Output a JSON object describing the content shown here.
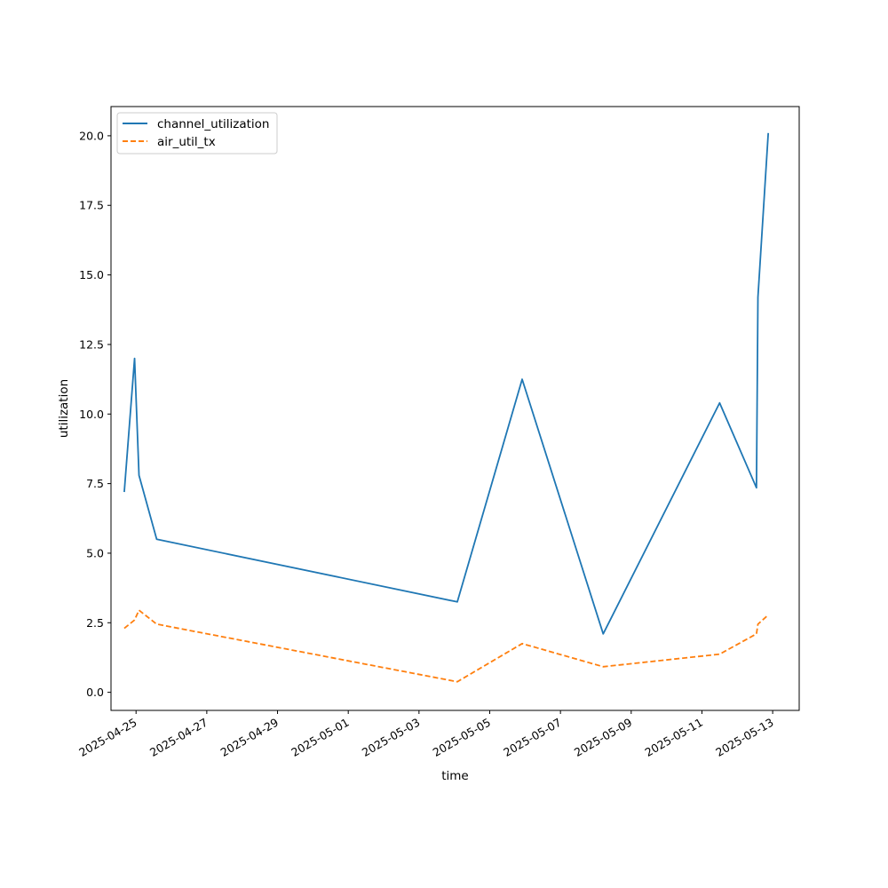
{
  "chart_data": {
    "type": "line",
    "title": "",
    "xlabel": "time",
    "ylabel": "utilization",
    "x_tick_labels": [
      "2025-04-25",
      "2025-04-27",
      "2025-04-29",
      "2025-05-01",
      "2025-05-03",
      "2025-05-05",
      "2025-05-07",
      "2025-05-09",
      "2025-05-11",
      "2025-05-13"
    ],
    "y_tick_labels": [
      "0.0",
      "2.5",
      "5.0",
      "7.5",
      "10.0",
      "12.5",
      "15.0",
      "17.5",
      "20.0"
    ],
    "xlim": [
      "2025-04-24 07:00",
      "2025-05-13 18:00"
    ],
    "ylim": [
      -0.65,
      21.05
    ],
    "grid": false,
    "legend_position": "upper-left",
    "series": [
      {
        "name": "channel_utilization",
        "color": "#1f77b4",
        "linestyle": "solid",
        "points": [
          {
            "x": "2025-04-24 16:00",
            "y": 7.2
          },
          {
            "x": "2025-04-24 23:00",
            "y": 12.0
          },
          {
            "x": "2025-04-25 02:00",
            "y": 7.8
          },
          {
            "x": "2025-04-25 14:00",
            "y": 5.5
          },
          {
            "x": "2025-05-04 02:00",
            "y": 3.25
          },
          {
            "x": "2025-05-05 22:00",
            "y": 11.25
          },
          {
            "x": "2025-05-08 05:00",
            "y": 2.1
          },
          {
            "x": "2025-05-11 12:00",
            "y": 10.4
          },
          {
            "x": "2025-05-12 13:00",
            "y": 7.35
          },
          {
            "x": "2025-05-12 14:00",
            "y": 14.2
          },
          {
            "x": "2025-05-12 21:00",
            "y": 20.1
          }
        ]
      },
      {
        "name": "air_util_tx",
        "color": "#ff7f0e",
        "linestyle": "dashed",
        "points": [
          {
            "x": "2025-04-24 16:00",
            "y": 2.3
          },
          {
            "x": "2025-04-24 23:00",
            "y": 2.6
          },
          {
            "x": "2025-04-25 02:00",
            "y": 2.95
          },
          {
            "x": "2025-04-25 14:00",
            "y": 2.45
          },
          {
            "x": "2025-05-04 02:00",
            "y": 0.38
          },
          {
            "x": "2025-05-05 22:00",
            "y": 1.75
          },
          {
            "x": "2025-05-08 05:00",
            "y": 0.92
          },
          {
            "x": "2025-05-11 12:00",
            "y": 1.37
          },
          {
            "x": "2025-05-12 13:00",
            "y": 2.1
          },
          {
            "x": "2025-05-12 14:00",
            "y": 2.45
          },
          {
            "x": "2025-05-12 21:00",
            "y": 2.78
          }
        ]
      }
    ]
  }
}
